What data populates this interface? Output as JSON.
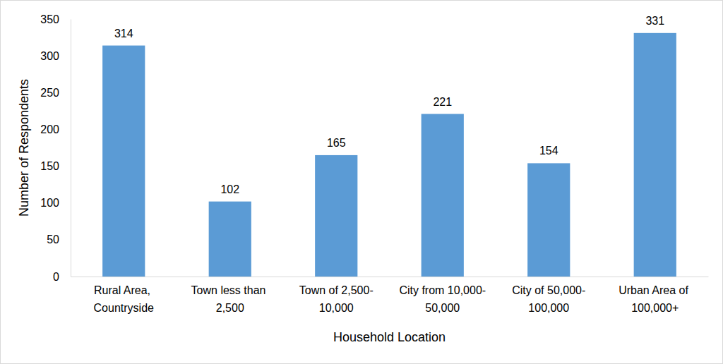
{
  "chart_data": {
    "type": "bar",
    "x_label": "Household Location",
    "y_label": "Number of Respondents",
    "categories": [
      "Rural Area, Countryside",
      "Town less than 2,500",
      "Town of 2,500-10,000",
      "City from 10,000-50,000",
      "City of 50,000-100,000",
      "Urban Area of 100,000+"
    ],
    "values": [
      314,
      102,
      165,
      221,
      154,
      331
    ],
    "color": "#5b9bd5",
    "ylim": [
      0,
      350
    ],
    "yticks": [
      0,
      50,
      100,
      150,
      200,
      250,
      300,
      350
    ],
    "grid": false,
    "data_labels": true
  }
}
